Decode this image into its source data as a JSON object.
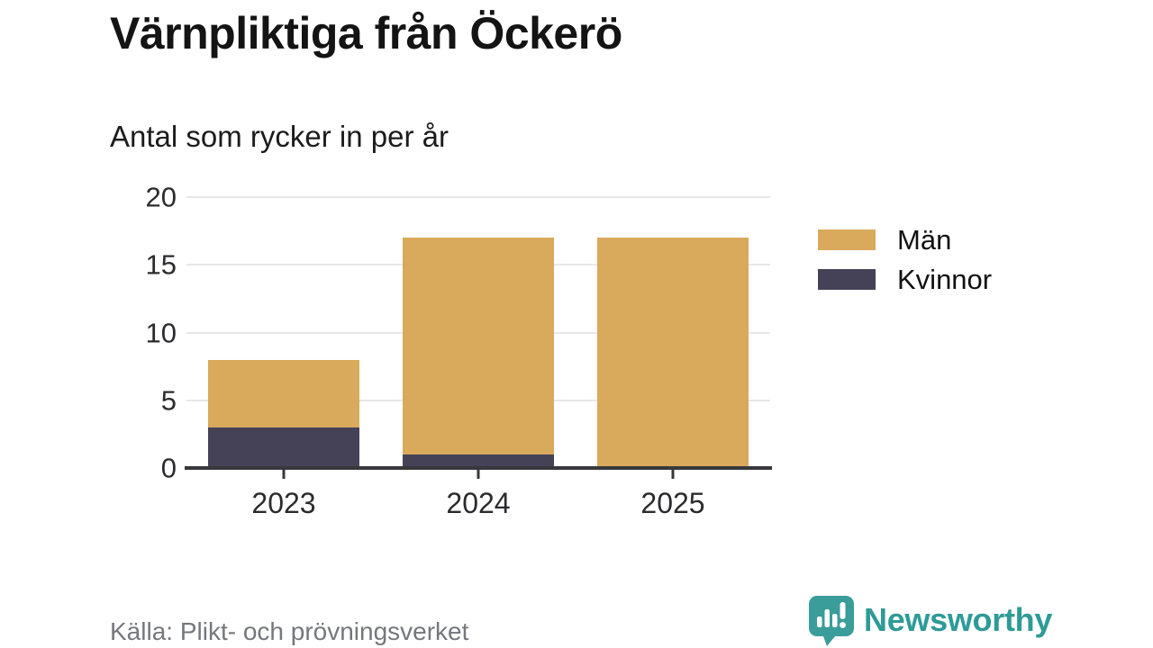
{
  "header": {
    "title": "Värnpliktiga från Öckerö",
    "subtitle": "Antal som rycker in per år"
  },
  "chart_data": {
    "type": "bar",
    "stacked": true,
    "title": "Värnpliktiga från Öckerö",
    "subtitle": "Antal som rycker in per år",
    "categories": [
      "2023",
      "2024",
      "2025"
    ],
    "series": [
      {
        "name": "Män",
        "color": "#D9A95C",
        "values": [
          5,
          16,
          17
        ]
      },
      {
        "name": "Kvinnor",
        "color": "#454257",
        "values": [
          3,
          1,
          0
        ]
      }
    ],
    "totals": [
      8,
      17,
      17
    ],
    "xlabel": "",
    "ylabel": "",
    "ylim": [
      0,
      20
    ],
    "yticks": [
      0,
      5,
      10,
      15,
      20
    ],
    "grid": true,
    "legend_position": "right"
  },
  "footer": {
    "source": "Källa: Plikt- och prövningsverket",
    "brand": "Newsworthy"
  },
  "colors": {
    "men": "#D9A95C",
    "women": "#454257",
    "axis": "#38383C",
    "gridline": "#E7E7E9",
    "brand_teal": "#2E9B97",
    "source_text": "#74777C"
  }
}
